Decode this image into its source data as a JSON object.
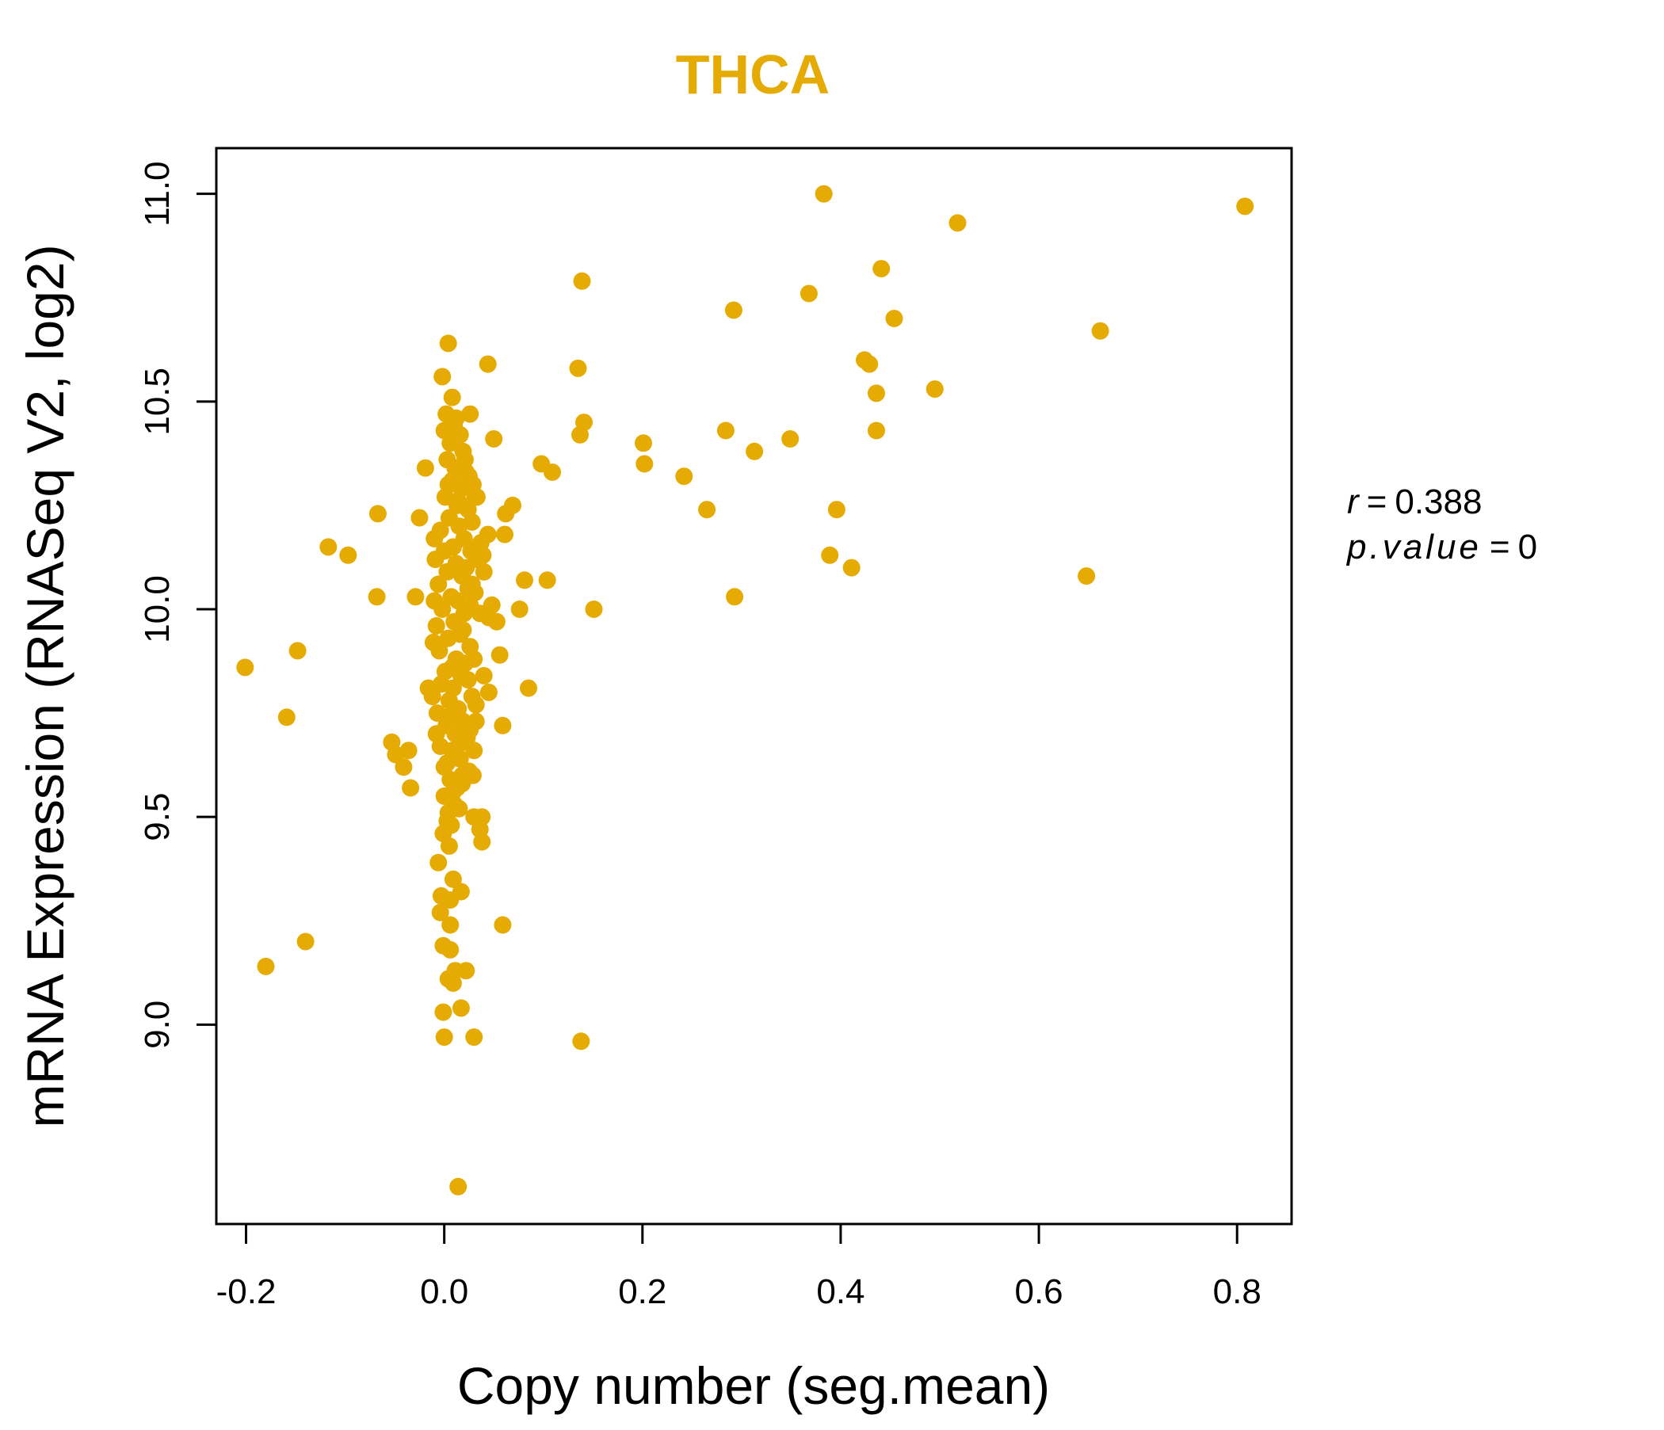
{
  "colors": {
    "accent": "#E6AB02",
    "axis": "#000000",
    "background": "#FFFFFF"
  },
  "chart_data": {
    "type": "scatter",
    "title": "THCA",
    "xlabel": "Copy number (seg.mean)",
    "ylabel": "mRNA Expression (RNASeq V2, log2)",
    "xlim": [
      -0.23,
      0.855
    ],
    "ylim": [
      8.52,
      11.11
    ],
    "x_ticks": [
      -0.2,
      0.0,
      0.2,
      0.4,
      0.6,
      0.8
    ],
    "x_tick_labels": [
      "-0.2",
      "0.0",
      "0.2",
      "0.4",
      "0.6",
      "0.8"
    ],
    "y_ticks": [
      9.0,
      9.5,
      10.0,
      10.5,
      11.0
    ],
    "y_tick_labels": [
      "9.0",
      "9.5",
      "10.0",
      "10.5",
      "11.0"
    ],
    "grid": false,
    "legend": "none",
    "annotation": {
      "r_label": "r",
      "r_value": "0.388",
      "p_label": "p.value",
      "p_value": "0"
    },
    "points": [
      [
        0.383,
        11.0
      ],
      [
        0.808,
        10.97
      ],
      [
        0.518,
        10.93
      ],
      [
        0.441,
        10.82
      ],
      [
        0.139,
        10.79
      ],
      [
        0.368,
        10.76
      ],
      [
        0.292,
        10.72
      ],
      [
        0.454,
        10.7
      ],
      [
        0.662,
        10.67
      ],
      [
        0.424,
        10.6
      ],
      [
        0.429,
        10.59
      ],
      [
        0.135,
        10.58
      ],
      [
        0.495,
        10.53
      ],
      [
        0.436,
        10.52
      ],
      [
        0.141,
        10.45
      ],
      [
        0.284,
        10.43
      ],
      [
        0.436,
        10.43
      ],
      [
        0.137,
        10.42
      ],
      [
        0.349,
        10.41
      ],
      [
        0.201,
        10.4
      ],
      [
        0.313,
        10.38
      ],
      [
        0.202,
        10.35
      ],
      [
        0.098,
        10.35
      ],
      [
        0.109,
        10.33
      ],
      [
        0.242,
        10.32
      ],
      [
        0.265,
        10.24
      ],
      [
        0.396,
        10.24
      ],
      [
        0.389,
        10.13
      ],
      [
        0.411,
        10.1
      ],
      [
        0.648,
        10.08
      ],
      [
        0.293,
        10.03
      ],
      [
        0.151,
        10.0
      ],
      [
        0.104,
        10.07
      ],
      [
        -0.201,
        9.86
      ],
      [
        -0.148,
        9.9
      ],
      [
        -0.159,
        9.74
      ],
      [
        -0.117,
        10.15
      ],
      [
        -0.097,
        10.13
      ],
      [
        -0.067,
        10.23
      ],
      [
        -0.068,
        10.03
      ],
      [
        -0.053,
        9.68
      ],
      [
        -0.049,
        9.65
      ],
      [
        -0.041,
        9.62
      ],
      [
        -0.036,
        9.66
      ],
      [
        -0.034,
        9.57
      ],
      [
        -0.029,
        10.03
      ],
      [
        -0.025,
        10.22
      ],
      [
        -0.019,
        10.34
      ],
      [
        -0.016,
        9.81
      ],
      [
        -0.18,
        9.14
      ],
      [
        -0.14,
        9.2
      ],
      [
        0.004,
        10.64
      ],
      [
        -0.002,
        10.56
      ],
      [
        0.008,
        10.51
      ],
      [
        0.044,
        10.59
      ],
      [
        0.026,
        10.47
      ],
      [
        0.05,
        10.41
      ],
      [
        0.069,
        10.25
      ],
      [
        0.062,
        10.23
      ],
      [
        0.061,
        10.18
      ],
      [
        0.081,
        10.07
      ],
      [
        0.076,
        10.0
      ],
      [
        0.053,
        9.97
      ],
      [
        0.056,
        9.89
      ],
      [
        0.085,
        9.81
      ],
      [
        0.045,
        9.8
      ],
      [
        0.059,
        9.72
      ],
      [
        0.032,
        9.73
      ],
      [
        0.04,
        9.84
      ],
      [
        0.045,
        9.98
      ],
      [
        0.048,
        10.01
      ],
      [
        0.039,
        10.13
      ],
      [
        0.037,
        10.16
      ],
      [
        0.044,
        10.18
      ],
      [
        0.029,
        10.3
      ],
      [
        0.033,
        10.27
      ],
      [
        0.04,
        10.09
      ],
      [
        0.028,
        10.06
      ],
      [
        0.038,
        9.5
      ],
      [
        0.03,
        9.5
      ],
      [
        0.036,
        9.47
      ],
      [
        0.038,
        9.44
      ],
      [
        0.029,
        9.6
      ],
      [
        0.018,
        9.58
      ],
      [
        0.017,
        9.32
      ],
      [
        0.059,
        9.24
      ],
      [
        0.009,
        9.35
      ],
      [
        0.006,
        9.3
      ],
      [
        -0.003,
        9.31
      ],
      [
        -0.006,
        9.39
      ],
      [
        -0.004,
        9.27
      ],
      [
        0.006,
        9.24
      ],
      [
        -0.001,
        9.19
      ],
      [
        0.006,
        9.18
      ],
      [
        0.004,
        9.11
      ],
      [
        0.009,
        9.1
      ],
      [
        0.011,
        9.13
      ],
      [
        0.022,
        9.13
      ],
      [
        -0.001,
        9.03
      ],
      [
        0.017,
        9.04
      ],
      [
        0.0,
        8.97
      ],
      [
        0.03,
        8.97
      ],
      [
        0.138,
        8.96
      ],
      [
        0.014,
        8.61
      ],
      [
        0.002,
        10.47
      ],
      [
        0.01,
        10.44
      ],
      [
        0.016,
        10.42
      ],
      [
        0.006,
        10.4
      ],
      [
        0.019,
        10.38
      ],
      [
        0.003,
        10.36
      ],
      [
        0.011,
        10.34
      ],
      [
        0.022,
        10.33
      ],
      [
        0.008,
        10.31
      ],
      [
        0.017,
        10.29
      ],
      [
        0.001,
        10.27
      ],
      [
        0.013,
        10.25
      ],
      [
        0.024,
        10.24
      ],
      [
        0.005,
        10.22
      ],
      [
        0.015,
        10.2
      ],
      [
        -0.004,
        10.19
      ],
      [
        0.02,
        10.17
      ],
      [
        0.009,
        10.15
      ],
      [
        0.027,
        10.14
      ],
      [
        -0.009,
        10.12
      ],
      [
        0.012,
        10.11
      ],
      [
        0.003,
        10.09
      ],
      [
        0.018,
        10.08
      ],
      [
        -0.006,
        10.06
      ],
      [
        0.024,
        10.05
      ],
      [
        0.007,
        10.03
      ],
      [
        0.014,
        10.02
      ],
      [
        -0.002,
        10.0
      ],
      [
        0.02,
        9.99
      ],
      [
        0.01,
        9.97
      ],
      [
        -0.008,
        9.96
      ],
      [
        0.016,
        9.94
      ],
      [
        0.004,
        9.93
      ],
      [
        0.026,
        9.91
      ],
      [
        -0.005,
        9.9
      ],
      [
        0.012,
        9.88
      ],
      [
        0.021,
        9.87
      ],
      [
        0.001,
        9.85
      ],
      [
        0.017,
        9.84
      ],
      [
        -0.003,
        9.82
      ],
      [
        0.009,
        9.81
      ],
      [
        0.028,
        9.79
      ],
      [
        0.005,
        9.78
      ],
      [
        0.014,
        9.76
      ],
      [
        -0.007,
        9.75
      ],
      [
        0.019,
        9.73
      ],
      [
        0.002,
        9.72
      ],
      [
        0.011,
        9.7
      ],
      [
        0.023,
        9.69
      ],
      [
        -0.004,
        9.67
      ],
      [
        0.008,
        9.66
      ],
      [
        0.016,
        9.64
      ],
      [
        0.003,
        9.63
      ],
      [
        0.025,
        9.61
      ],
      [
        0.006,
        9.59
      ],
      [
        0.013,
        9.57
      ],
      [
        0.0,
        9.55
      ],
      [
        0.01,
        9.53
      ],
      [
        0.004,
        9.51
      ],
      [
        0.007,
        9.48
      ],
      [
        -0.001,
        9.46
      ],
      [
        0.005,
        9.43
      ],
      [
        0.012,
        10.46
      ],
      [
        0.0,
        10.43
      ],
      [
        0.021,
        10.36
      ],
      [
        0.025,
        10.32
      ],
      [
        0.004,
        10.3
      ],
      [
        0.031,
        10.27
      ],
      [
        0.014,
        10.26
      ],
      [
        0.028,
        10.21
      ],
      [
        -0.01,
        10.17
      ],
      [
        0.033,
        10.12
      ],
      [
        0.0,
        10.14
      ],
      [
        0.022,
        10.1
      ],
      [
        0.031,
        10.04
      ],
      [
        -0.01,
        10.02
      ],
      [
        0.026,
        10.01
      ],
      [
        0.036,
        9.99
      ],
      [
        0.019,
        9.95
      ],
      [
        -0.011,
        9.92
      ],
      [
        0.03,
        9.88
      ],
      [
        0.008,
        9.86
      ],
      [
        0.024,
        9.83
      ],
      [
        -0.012,
        9.79
      ],
      [
        0.032,
        9.77
      ],
      [
        0.003,
        9.74
      ],
      [
        0.026,
        9.71
      ],
      [
        -0.008,
        9.7
      ],
      [
        0.02,
        9.68
      ],
      [
        0.03,
        9.66
      ],
      [
        0.0,
        9.62
      ],
      [
        0.018,
        9.6
      ],
      [
        0.009,
        9.56
      ],
      [
        0.015,
        9.52
      ],
      [
        0.003,
        9.49
      ]
    ]
  }
}
